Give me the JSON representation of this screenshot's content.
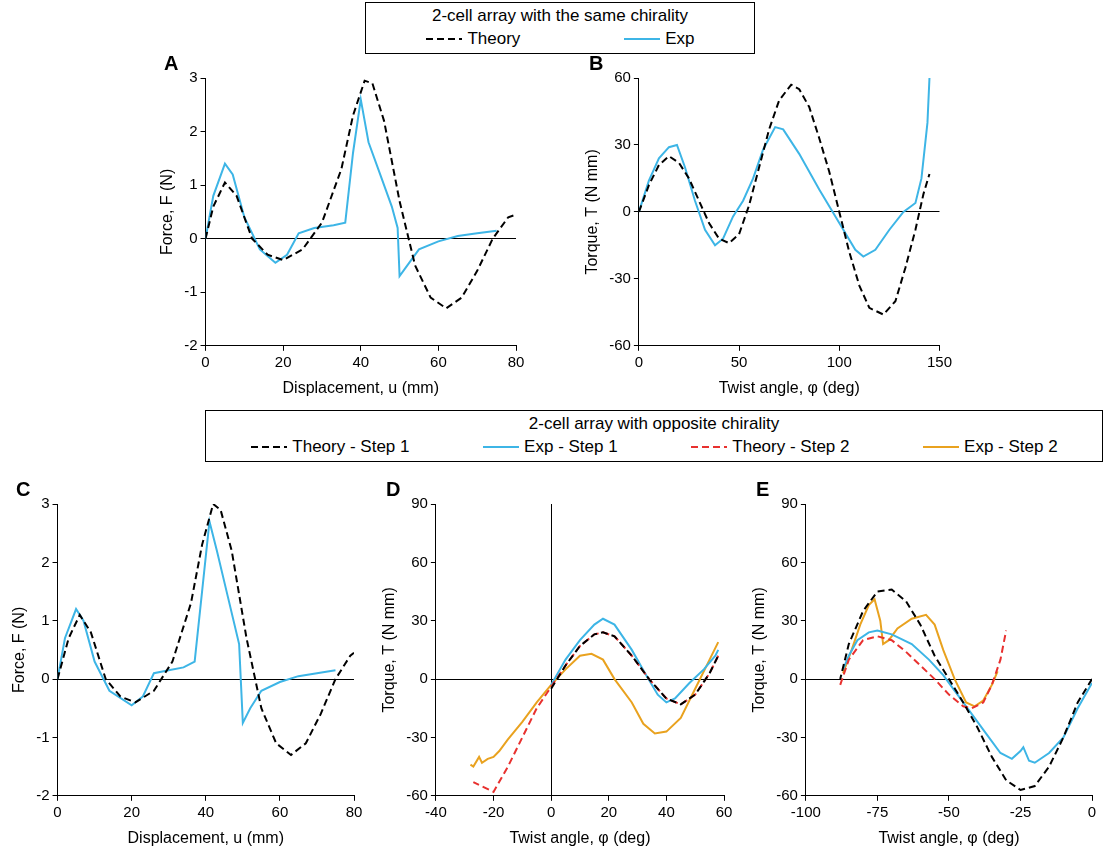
{
  "legends": [
    {
      "title": "2-cell array with the same chirality",
      "panels": [
        "A",
        "B"
      ]
    },
    {
      "title": "2-cell array with opposite chirality",
      "panels": [
        "C",
        "D",
        "E"
      ]
    }
  ],
  "chart_data": [
    {
      "type": "line",
      "panel": "A",
      "x_label": "Displacement, u (mm)",
      "y_label": "Force, F (N)",
      "xlim": [
        0,
        80
      ],
      "xticks": [
        0,
        20,
        40,
        60,
        80
      ],
      "ylim": [
        -2,
        3
      ],
      "yticks": [
        -2,
        -1,
        0,
        1,
        2,
        3
      ],
      "grid": false,
      "series": [
        {
          "name": "Theory",
          "color": "#000000",
          "line_style": "dashed",
          "x": [
            0,
            2,
            5,
            8,
            12,
            16,
            20,
            25,
            30,
            35,
            38,
            41,
            43,
            46,
            50,
            54,
            58,
            62,
            66,
            70,
            74,
            78,
            80
          ],
          "values": [
            0,
            0.6,
            1.05,
            0.8,
            0,
            -0.3,
            -0.4,
            -0.2,
            0.3,
            1.3,
            2.3,
            2.95,
            2.9,
            2.2,
            0.7,
            -0.5,
            -1.1,
            -1.3,
            -1.1,
            -0.6,
            0,
            0.4,
            0.45
          ]
        },
        {
          "name": "Exp",
          "color": "#3db5e6",
          "line_style": "solid",
          "x": [
            0,
            2,
            5,
            7,
            10,
            14,
            18,
            21,
            24,
            28,
            33,
            36,
            38,
            40,
            42,
            45,
            48,
            49.5,
            50,
            52,
            55,
            60,
            65,
            70,
            75
          ],
          "values": [
            0,
            0.8,
            1.4,
            1.2,
            0.4,
            -0.2,
            -0.45,
            -0.3,
            0.1,
            0.2,
            0.25,
            0.3,
            1.6,
            2.6,
            1.8,
            1.2,
            0.6,
            0.2,
            -0.7,
            -0.5,
            -0.2,
            -0.05,
            0.05,
            0.1,
            0.15
          ]
        }
      ]
    },
    {
      "type": "line",
      "panel": "B",
      "x_label": "Twist angle, φ (deg)",
      "y_label": "Torque, T (N mm)",
      "xlim": [
        0,
        150
      ],
      "xticks": [
        0,
        50,
        100,
        150
      ],
      "ylim": [
        -60,
        60
      ],
      "yticks": [
        -60,
        -30,
        0,
        30,
        60
      ],
      "grid": false,
      "series": [
        {
          "name": "Theory",
          "color": "#000000",
          "line_style": "dashed",
          "x": [
            0,
            5,
            10,
            15,
            20,
            25,
            30,
            35,
            40,
            45,
            50,
            55,
            60,
            65,
            70,
            76,
            80,
            85,
            90,
            95,
            100,
            105,
            110,
            115,
            122,
            128,
            133,
            138,
            142,
            145
          ],
          "values": [
            0,
            12,
            21,
            25,
            22,
            15,
            5,
            -5,
            -12,
            -14,
            -10,
            3,
            20,
            37,
            50,
            57,
            55,
            47,
            33,
            18,
            0,
            -18,
            -33,
            -43,
            -46,
            -40,
            -25,
            -8,
            8,
            17
          ]
        },
        {
          "name": "Exp",
          "color": "#3db5e6",
          "line_style": "solid",
          "x": [
            0,
            5,
            10,
            15,
            19,
            23,
            28,
            33,
            38,
            42,
            47,
            52,
            57,
            62,
            68,
            72,
            80,
            90,
            100,
            108,
            112,
            118,
            125,
            132,
            138,
            141,
            144,
            145
          ],
          "values": [
            0,
            14,
            24,
            29,
            30,
            20,
            5,
            -8,
            -15,
            -12,
            -2,
            5,
            15,
            28,
            38,
            37,
            26,
            10,
            -5,
            -17,
            -20,
            -17,
            -8,
            0,
            4,
            15,
            40,
            60
          ]
        }
      ]
    },
    {
      "type": "line",
      "panel": "C",
      "x_label": "Displacement, u (mm)",
      "y_label": "Force, F (N)",
      "xlim": [
        0,
        80
      ],
      "xticks": [
        0,
        20,
        40,
        60,
        80
      ],
      "ylim": [
        -2,
        3
      ],
      "yticks": [
        -2,
        -1,
        0,
        1,
        2,
        3
      ],
      "grid": false,
      "series": [
        {
          "name": "Theory - Step 1",
          "color": "#000000",
          "line_style": "dashed",
          "x": [
            0,
            3,
            6,
            9,
            13,
            17,
            21,
            26,
            31,
            36,
            39,
            42,
            44,
            47,
            51,
            55,
            59,
            63,
            67,
            71,
            75,
            79,
            80
          ],
          "values": [
            0,
            0.7,
            1.1,
            0.8,
            0,
            -0.3,
            -0.4,
            -0.2,
            0.3,
            1.3,
            2.3,
            3.0,
            2.9,
            2.2,
            0.7,
            -0.5,
            -1.1,
            -1.3,
            -1.1,
            -0.6,
            0,
            0.4,
            0.45
          ]
        },
        {
          "name": "Exp - Step 1",
          "color": "#3db5e6",
          "line_style": "solid",
          "x": [
            0,
            2,
            5,
            7,
            10,
            14,
            20,
            23,
            26,
            30,
            34,
            37,
            39,
            41,
            43,
            46,
            49,
            50,
            52,
            55,
            60,
            65,
            70,
            75
          ],
          "values": [
            0,
            0.7,
            1.2,
            1.0,
            0.3,
            -0.2,
            -0.45,
            -0.3,
            0.1,
            0.15,
            0.2,
            0.3,
            1.5,
            2.7,
            2.2,
            1.4,
            0.6,
            -0.75,
            -0.5,
            -0.2,
            -0.05,
            0.05,
            0.1,
            0.15
          ]
        }
      ]
    },
    {
      "type": "line",
      "panel": "D",
      "x_label": "Twist angle, φ (deg)",
      "y_label": "Torque, T (N mm)",
      "xlim": [
        -40,
        60
      ],
      "xticks": [
        -40,
        -20,
        0,
        20,
        40,
        60
      ],
      "ylim": [
        -60,
        90
      ],
      "yticks": [
        -60,
        -30,
        0,
        30,
        60,
        90
      ],
      "grid": false,
      "series": [
        {
          "name": "Theory - Step 1",
          "color": "#000000",
          "line_style": "dashed",
          "x": [
            0,
            5,
            10,
            15,
            18,
            22,
            28,
            34,
            40,
            45,
            50,
            55,
            58
          ],
          "values": [
            -5,
            7,
            17,
            23,
            24,
            22,
            12,
            0,
            -10,
            -13,
            -8,
            3,
            12
          ]
        },
        {
          "name": "Theory - Step 2",
          "color": "#e8312f",
          "line_style": "dashed",
          "x": [
            58,
            55,
            50,
            45,
            40,
            34,
            28,
            22,
            18,
            15,
            10,
            5,
            0,
            -5,
            -10,
            -15,
            -20,
            -27
          ],
          "values": [
            12,
            3,
            -8,
            -13,
            -10,
            0,
            12,
            22,
            24,
            23,
            17,
            7,
            -4,
            -15,
            -30,
            -45,
            -58,
            -53
          ]
        },
        {
          "name": "Exp - Step 1",
          "color": "#3db5e6",
          "line_style": "solid",
          "x": [
            0,
            5,
            10,
            15,
            18,
            22,
            28,
            33,
            37,
            40,
            43,
            48,
            53,
            57,
            58
          ],
          "values": [
            -3,
            10,
            20,
            28,
            31,
            28,
            15,
            2,
            -8,
            -12,
            -10,
            -2,
            5,
            12,
            15
          ]
        },
        {
          "name": "Exp - Step 2",
          "color": "#e9a21f",
          "line_style": "solid",
          "x": [
            58,
            55,
            50,
            45,
            40,
            36,
            32,
            28,
            22,
            18,
            14,
            10,
            5,
            0,
            -5,
            -10,
            -15,
            -18,
            -20,
            -22,
            -24,
            -25,
            -27,
            -28
          ],
          "values": [
            19,
            10,
            -5,
            -20,
            -27,
            -28,
            -23,
            -12,
            0,
            10,
            13,
            12,
            5,
            -3,
            -12,
            -22,
            -31,
            -37,
            -40,
            -41,
            -43,
            -40,
            -45,
            -44
          ]
        }
      ]
    },
    {
      "type": "line",
      "panel": "E",
      "x_label": "Twist angle, φ (deg)",
      "y_label": "Torque, T (N mm)",
      "xlim": [
        -100,
        0
      ],
      "xticks": [
        -100,
        -75,
        -50,
        -25,
        0
      ],
      "ylim": [
        -60,
        90
      ],
      "yticks": [
        -60,
        -30,
        0,
        30,
        60,
        90
      ],
      "grid": false,
      "series": [
        {
          "name": "Theory - Step 1",
          "color": "#000000",
          "line_style": "dashed",
          "x": [
            0,
            -5,
            -10,
            -15,
            -20,
            -25,
            -30,
            -35,
            -40,
            -45,
            -50,
            -55,
            -60,
            -65,
            -70,
            -75,
            -80,
            -85,
            -88
          ],
          "values": [
            0,
            -12,
            -30,
            -45,
            -55,
            -57,
            -52,
            -40,
            -25,
            -12,
            0,
            12,
            28,
            40,
            46,
            45,
            35,
            18,
            0
          ]
        },
        {
          "name": "Theory - Step 2",
          "color": "#e8312f",
          "line_style": "dashed",
          "x": [
            -88,
            -85,
            -80,
            -75,
            -70,
            -65,
            -60,
            -55,
            -50,
            -45,
            -42,
            -38,
            -35,
            -32,
            -30
          ],
          "values": [
            -3,
            10,
            20,
            22,
            20,
            14,
            7,
            0,
            -8,
            -14,
            -15,
            -12,
            -3,
            10,
            25
          ]
        },
        {
          "name": "Exp - Step 1",
          "color": "#3db5e6",
          "line_style": "solid",
          "x": [
            0,
            -5,
            -10,
            -15,
            -20,
            -22,
            -24,
            -25,
            -28,
            -32,
            -37,
            -42,
            -47,
            -52,
            -57,
            -63,
            -70,
            -75,
            -78,
            -82,
            -85,
            -87
          ],
          "values": [
            -2,
            -15,
            -30,
            -38,
            -43,
            -42,
            -35,
            -37,
            -41,
            -38,
            -28,
            -18,
            -8,
            2,
            10,
            18,
            23,
            25,
            24,
            20,
            12,
            5
          ]
        },
        {
          "name": "Exp - Step 2",
          "color": "#e9a21f",
          "line_style": "solid",
          "x": [
            -87,
            -84,
            -81,
            -78,
            -76,
            -74,
            -73,
            -71,
            -68,
            -63,
            -58,
            -55,
            -52,
            -48,
            -44,
            -41,
            -38,
            -35,
            -33
          ],
          "values": [
            3,
            15,
            28,
            38,
            41,
            30,
            18,
            20,
            26,
            31,
            33,
            28,
            15,
            0,
            -12,
            -14,
            -11,
            -3,
            4
          ]
        }
      ]
    }
  ]
}
